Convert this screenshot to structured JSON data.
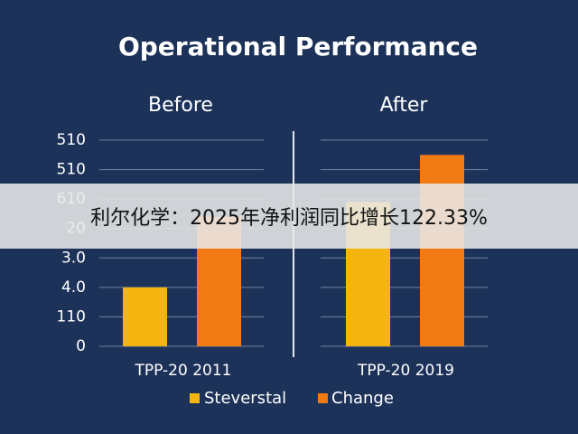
{
  "title": "Operational Performance",
  "banner": "利尔化学：2025年净利润同比增长122.33%",
  "chart_data": [
    {
      "type": "bar",
      "title": "Before",
      "categories": [
        "TPP-20 2011"
      ],
      "series": [
        {
          "name": "Steverstal",
          "color": "#f6b40e",
          "values": [
            2.0
          ]
        },
        {
          "name": "Change",
          "color": "#f27a12",
          "values": [
            4.4
          ]
        }
      ],
      "ylim": [
        0,
        7
      ],
      "yticks": [
        {
          "value": 0,
          "label": "0"
        },
        {
          "value": 1,
          "label": "110"
        },
        {
          "value": 2,
          "label": "4.0"
        },
        {
          "value": 3,
          "label": "3.0"
        },
        {
          "value": 4,
          "label": "20"
        },
        {
          "value": 5,
          "label": "610"
        },
        {
          "value": 6,
          "label": "510"
        },
        {
          "value": 7,
          "label": "510"
        }
      ],
      "grid": true
    },
    {
      "type": "bar",
      "title": "After",
      "categories": [
        "TPP-20 2019"
      ],
      "series": [
        {
          "color": "#f6b40e",
          "values": [
            4.9
          ]
        },
        {
          "color": "#f27a12",
          "values": [
            6.5
          ]
        }
      ],
      "ylim": [
        0,
        7
      ],
      "grid": true
    }
  ]
}
